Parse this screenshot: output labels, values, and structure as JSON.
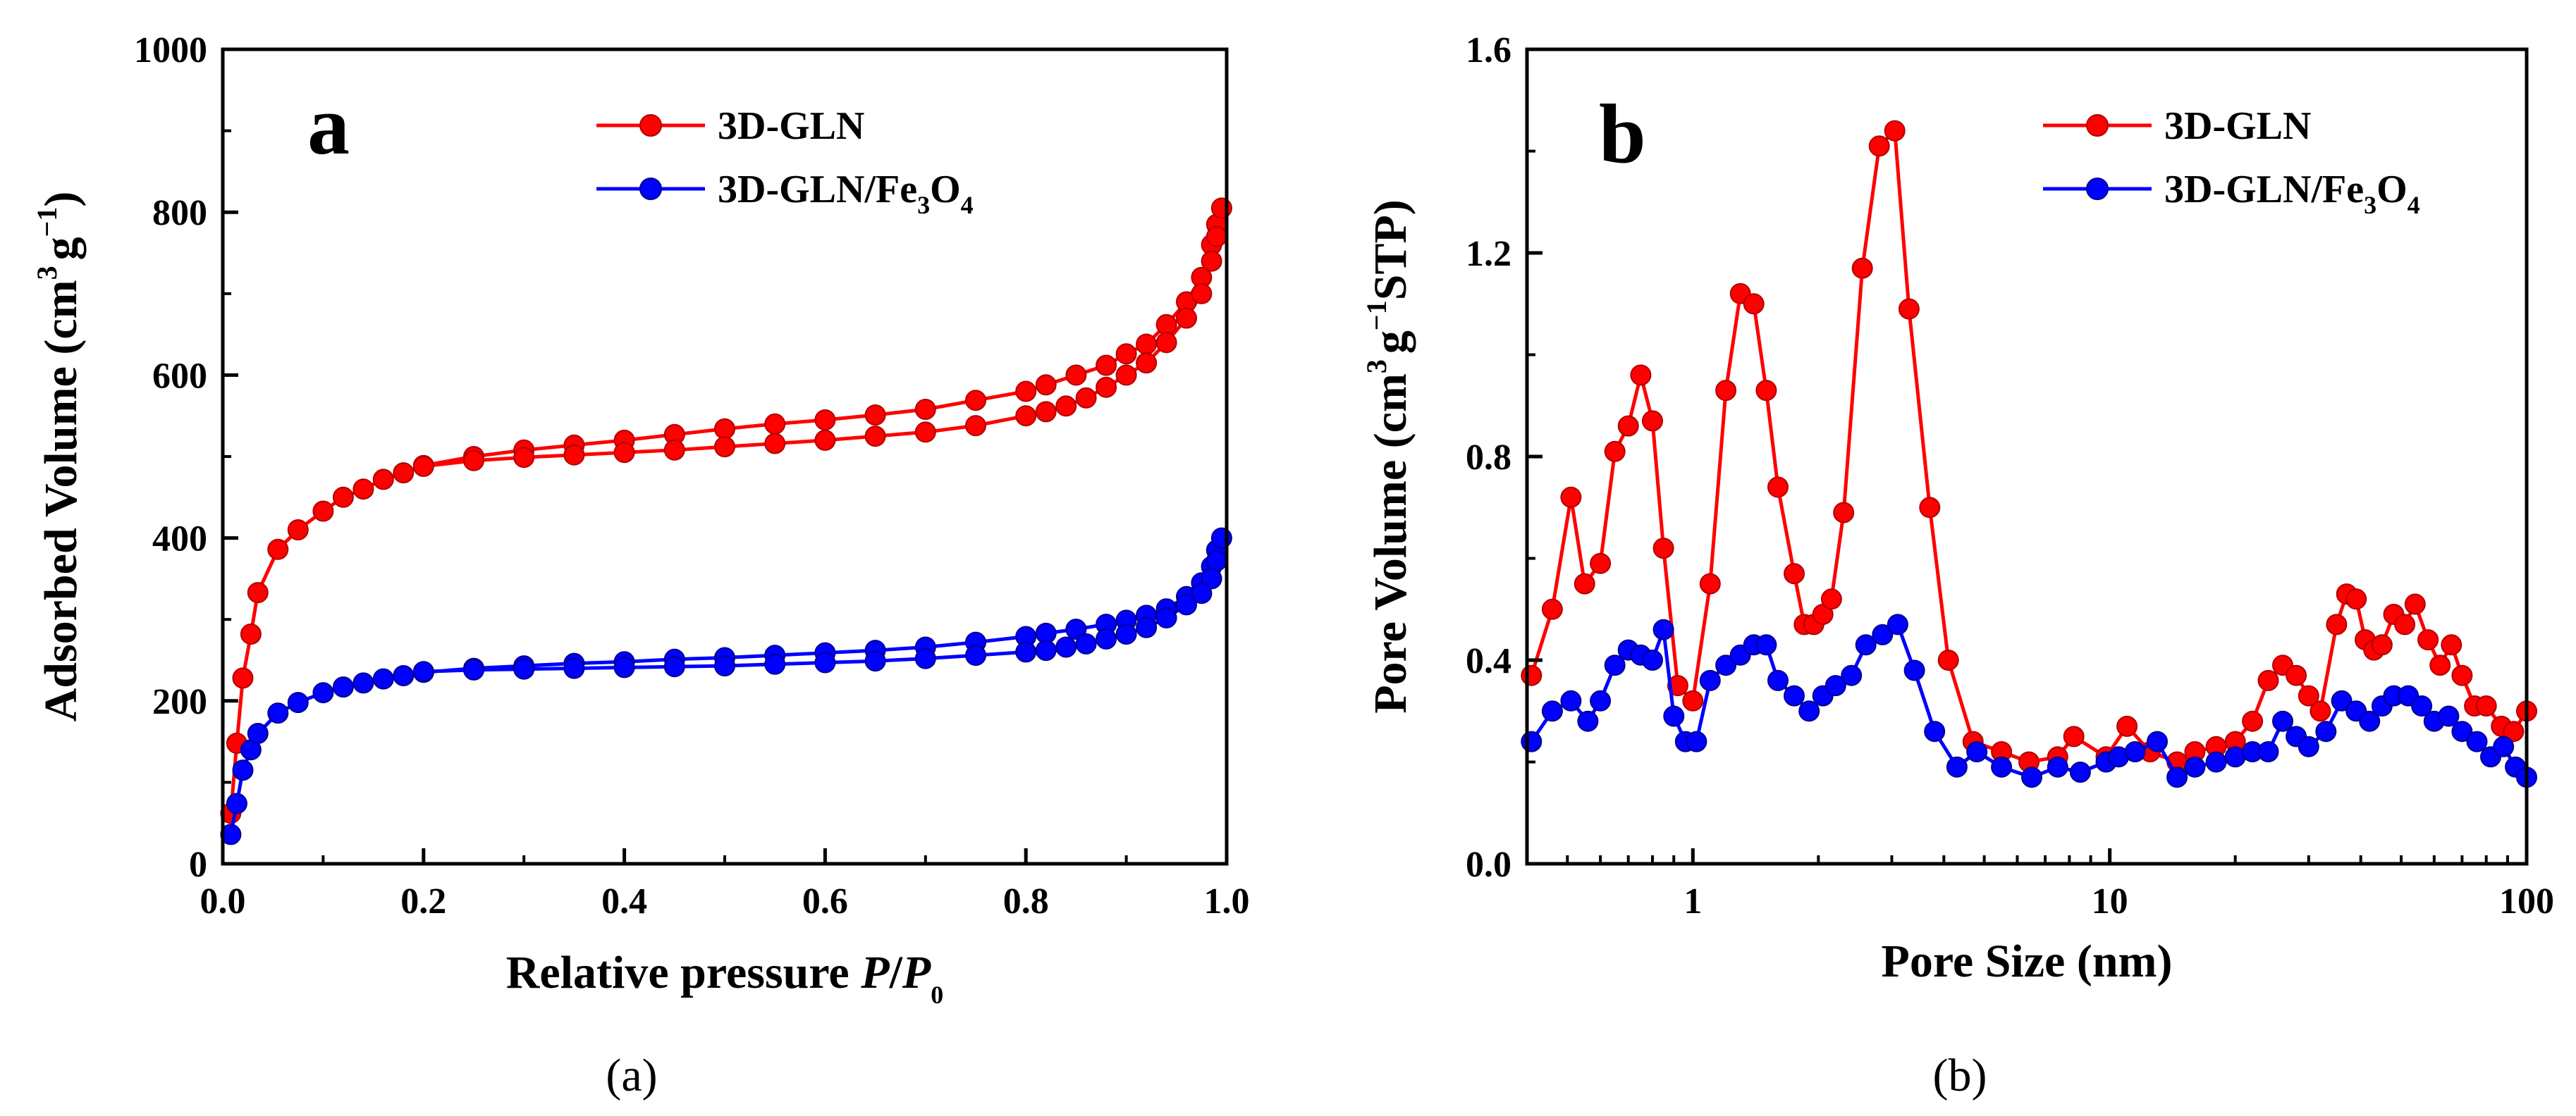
{
  "chart_data": [
    {
      "type": "line",
      "panel_letter": "a",
      "caption": "(a)",
      "xlabel": {
        "main": "Relative pressure ",
        "italic1": "P",
        "slash": "/",
        "italic2": "P",
        "sub": "0"
      },
      "ylabel": {
        "main": "Adsorbed Volume (cm",
        "sup1": "3",
        "mid": "g",
        "sup2": "−1",
        "end": ")"
      },
      "xscale": "linear",
      "xlim": [
        0.0,
        1.0
      ],
      "ylim": [
        0,
        1000
      ],
      "xticks": [
        0.0,
        0.2,
        0.4,
        0.6,
        0.8,
        1.0
      ],
      "xtick_labels": [
        "0.0",
        "0.2",
        "0.4",
        "0.6",
        "0.8",
        "1.0"
      ],
      "yticks": [
        0,
        200,
        400,
        600,
        800,
        1000
      ],
      "ytick_labels": [
        "0",
        "200",
        "400",
        "600",
        "800",
        "1000"
      ],
      "legend_position": "top-right",
      "series": [
        {
          "name": "3D-GLN",
          "label_main": "3D-GLN",
          "color": "#ff0000",
          "points": [
            [
              0.008,
              62
            ],
            [
              0.014,
              148
            ],
            [
              0.02,
              228
            ],
            [
              0.028,
              282
            ],
            [
              0.035,
              333
            ],
            [
              0.055,
              386
            ],
            [
              0.075,
              410
            ],
            [
              0.1,
              433
            ],
            [
              0.12,
              450
            ],
            [
              0.14,
              460
            ],
            [
              0.16,
              472
            ],
            [
              0.18,
              480
            ],
            [
              0.2,
              489
            ],
            [
              0.25,
              500
            ],
            [
              0.3,
              508
            ],
            [
              0.35,
              514
            ],
            [
              0.4,
              520
            ],
            [
              0.45,
              527
            ],
            [
              0.5,
              534
            ],
            [
              0.55,
              540
            ],
            [
              0.6,
              545
            ],
            [
              0.65,
              551
            ],
            [
              0.7,
              558
            ],
            [
              0.75,
              569
            ],
            [
              0.8,
              580
            ],
            [
              0.82,
              588
            ],
            [
              0.85,
              600
            ],
            [
              0.88,
              612
            ],
            [
              0.9,
              626
            ],
            [
              0.92,
              638
            ],
            [
              0.94,
              662
            ],
            [
              0.96,
              690
            ],
            [
              0.975,
              720
            ],
            [
              0.985,
              760
            ],
            [
              0.99,
              785
            ],
            [
              0.995,
              805
            ],
            [
              0.99,
              770
            ],
            [
              0.985,
              740
            ],
            [
              0.975,
              700
            ],
            [
              0.96,
              670
            ],
            [
              0.94,
              640
            ],
            [
              0.92,
              615
            ],
            [
              0.9,
              600
            ],
            [
              0.88,
              585
            ],
            [
              0.86,
              572
            ],
            [
              0.84,
              562
            ],
            [
              0.82,
              555
            ],
            [
              0.8,
              550
            ],
            [
              0.75,
              538
            ],
            [
              0.7,
              530
            ],
            [
              0.65,
              525
            ],
            [
              0.6,
              520
            ],
            [
              0.55,
              516
            ],
            [
              0.5,
              512
            ],
            [
              0.45,
              508
            ],
            [
              0.4,
              505
            ],
            [
              0.35,
              502
            ],
            [
              0.3,
              499
            ],
            [
              0.25,
              495
            ],
            [
              0.2,
              488
            ]
          ]
        },
        {
          "name": "3D-GLN/Fe3O4",
          "label_main": "3D-GLN/Fe",
          "label_sub1": "3",
          "label_mid": "O",
          "label_sub2": "4",
          "color": "#0000ff",
          "points": [
            [
              0.008,
              36
            ],
            [
              0.014,
              74
            ],
            [
              0.02,
              115
            ],
            [
              0.028,
              140
            ],
            [
              0.035,
              160
            ],
            [
              0.055,
              185
            ],
            [
              0.075,
              198
            ],
            [
              0.1,
              210
            ],
            [
              0.12,
              217
            ],
            [
              0.14,
              222
            ],
            [
              0.16,
              227
            ],
            [
              0.18,
              231
            ],
            [
              0.2,
              235
            ],
            [
              0.25,
              240
            ],
            [
              0.3,
              243
            ],
            [
              0.35,
              246
            ],
            [
              0.4,
              248
            ],
            [
              0.45,
              251
            ],
            [
              0.5,
              253
            ],
            [
              0.55,
              256
            ],
            [
              0.6,
              259
            ],
            [
              0.65,
              262
            ],
            [
              0.7,
              266
            ],
            [
              0.75,
              272
            ],
            [
              0.8,
              279
            ],
            [
              0.82,
              283
            ],
            [
              0.85,
              288
            ],
            [
              0.88,
              294
            ],
            [
              0.9,
              299
            ],
            [
              0.92,
              305
            ],
            [
              0.94,
              313
            ],
            [
              0.96,
              328
            ],
            [
              0.975,
              345
            ],
            [
              0.985,
              365
            ],
            [
              0.99,
              385
            ],
            [
              0.995,
              400
            ],
            [
              0.99,
              372
            ],
            [
              0.985,
              350
            ],
            [
              0.975,
              332
            ],
            [
              0.96,
              318
            ],
            [
              0.94,
              302
            ],
            [
              0.92,
              290
            ],
            [
              0.9,
              282
            ],
            [
              0.88,
              276
            ],
            [
              0.86,
              270
            ],
            [
              0.84,
              266
            ],
            [
              0.82,
              262
            ],
            [
              0.8,
              260
            ],
            [
              0.75,
              256
            ],
            [
              0.7,
              252
            ],
            [
              0.65,
              249
            ],
            [
              0.6,
              247
            ],
            [
              0.55,
              245
            ],
            [
              0.5,
              243
            ],
            [
              0.45,
              242
            ],
            [
              0.4,
              241
            ],
            [
              0.35,
              240
            ],
            [
              0.3,
              239
            ],
            [
              0.25,
              238
            ],
            [
              0.2,
              236
            ]
          ]
        }
      ]
    },
    {
      "type": "line",
      "panel_letter": "b",
      "caption": "(b)",
      "xlabel": {
        "main": "Pore Size (nm)"
      },
      "ylabel": {
        "main": "Pore Volume (cm",
        "sup1": "3",
        "mid": "g",
        "sup2": "−1",
        "end": "STP)"
      },
      "xscale": "log",
      "xlim": [
        0.4,
        100
      ],
      "ylim": [
        0.0,
        1.6
      ],
      "xticks": [
        1,
        10,
        100
      ],
      "xtick_labels": [
        "1",
        "10",
        "100"
      ],
      "yticks": [
        0.0,
        0.4,
        0.8,
        1.2,
        1.6
      ],
      "ytick_labels": [
        "0.0",
        "0.4",
        "0.8",
        "1.2",
        "1.6"
      ],
      "legend_position": "top-right",
      "series": [
        {
          "name": "3D-GLN",
          "label_main": "3D-GLN",
          "color": "#ff0000",
          "points": [
            [
              0.41,
              0.37
            ],
            [
              0.46,
              0.5
            ],
            [
              0.51,
              0.72
            ],
            [
              0.55,
              0.55
            ],
            [
              0.6,
              0.59
            ],
            [
              0.65,
              0.81
            ],
            [
              0.7,
              0.86
            ],
            [
              0.75,
              0.96
            ],
            [
              0.8,
              0.87
            ],
            [
              0.85,
              0.62
            ],
            [
              0.92,
              0.35
            ],
            [
              1.0,
              0.32
            ],
            [
              1.1,
              0.55
            ],
            [
              1.2,
              0.93
            ],
            [
              1.3,
              1.12
            ],
            [
              1.4,
              1.1
            ],
            [
              1.5,
              0.93
            ],
            [
              1.6,
              0.74
            ],
            [
              1.75,
              0.57
            ],
            [
              1.85,
              0.47
            ],
            [
              1.95,
              0.47
            ],
            [
              2.05,
              0.49
            ],
            [
              2.15,
              0.52
            ],
            [
              2.3,
              0.69
            ],
            [
              2.55,
              1.17
            ],
            [
              2.8,
              1.41
            ],
            [
              3.05,
              1.44
            ],
            [
              3.3,
              1.09
            ],
            [
              3.7,
              0.7
            ],
            [
              4.1,
              0.4
            ],
            [
              4.7,
              0.24
            ],
            [
              5.5,
              0.22
            ],
            [
              6.4,
              0.2
            ],
            [
              7.5,
              0.21
            ],
            [
              8.2,
              0.25
            ],
            [
              9.8,
              0.21
            ],
            [
              11,
              0.27
            ],
            [
              12.5,
              0.22
            ],
            [
              14.5,
              0.2
            ],
            [
              16,
              0.22
            ],
            [
              18,
              0.23
            ],
            [
              20,
              0.24
            ],
            [
              22,
              0.28
            ],
            [
              24,
              0.36
            ],
            [
              26,
              0.39
            ],
            [
              28,
              0.37
            ],
            [
              30,
              0.33
            ],
            [
              32,
              0.3
            ],
            [
              35,
              0.47
            ],
            [
              37,
              0.53
            ],
            [
              39,
              0.52
            ],
            [
              41,
              0.44
            ],
            [
              43,
              0.42
            ],
            [
              45,
              0.43
            ],
            [
              48,
              0.49
            ],
            [
              51,
              0.47
            ],
            [
              54,
              0.51
            ],
            [
              58,
              0.44
            ],
            [
              62,
              0.39
            ],
            [
              66,
              0.43
            ],
            [
              70,
              0.37
            ],
            [
              75,
              0.31
            ],
            [
              80,
              0.31
            ],
            [
              87,
              0.27
            ],
            [
              93,
              0.26
            ],
            [
              100,
              0.3
            ]
          ]
        },
        {
          "name": "3D-GLN/Fe3O4",
          "label_main": "3D-GLN/Fe",
          "label_sub1": "3",
          "label_mid": "O",
          "label_sub2": "4",
          "color": "#0000ff",
          "points": [
            [
              0.41,
              0.24
            ],
            [
              0.46,
              0.3
            ],
            [
              0.51,
              0.32
            ],
            [
              0.56,
              0.28
            ],
            [
              0.6,
              0.32
            ],
            [
              0.65,
              0.39
            ],
            [
              0.7,
              0.42
            ],
            [
              0.75,
              0.41
            ],
            [
              0.8,
              0.4
            ],
            [
              0.85,
              0.46
            ],
            [
              0.9,
              0.29
            ],
            [
              0.96,
              0.24
            ],
            [
              1.02,
              0.24
            ],
            [
              1.1,
              0.36
            ],
            [
              1.2,
              0.39
            ],
            [
              1.3,
              0.41
            ],
            [
              1.4,
              0.43
            ],
            [
              1.5,
              0.43
            ],
            [
              1.6,
              0.36
            ],
            [
              1.75,
              0.33
            ],
            [
              1.9,
              0.3
            ],
            [
              2.05,
              0.33
            ],
            [
              2.2,
              0.35
            ],
            [
              2.4,
              0.37
            ],
            [
              2.6,
              0.43
            ],
            [
              2.85,
              0.45
            ],
            [
              3.1,
              0.47
            ],
            [
              3.4,
              0.38
            ],
            [
              3.8,
              0.26
            ],
            [
              4.3,
              0.19
            ],
            [
              4.8,
              0.22
            ],
            [
              5.5,
              0.19
            ],
            [
              6.5,
              0.17
            ],
            [
              7.5,
              0.19
            ],
            [
              8.5,
              0.18
            ],
            [
              9.8,
              0.2
            ],
            [
              10.5,
              0.21
            ],
            [
              11.5,
              0.22
            ],
            [
              13,
              0.24
            ],
            [
              14.5,
              0.17
            ],
            [
              16,
              0.19
            ],
            [
              18,
              0.2
            ],
            [
              20,
              0.21
            ],
            [
              22,
              0.22
            ],
            [
              24,
              0.22
            ],
            [
              26,
              0.28
            ],
            [
              28,
              0.25
            ],
            [
              30,
              0.23
            ],
            [
              33,
              0.26
            ],
            [
              36,
              0.32
            ],
            [
              39,
              0.3
            ],
            [
              42,
              0.28
            ],
            [
              45,
              0.31
            ],
            [
              48,
              0.33
            ],
            [
              52,
              0.33
            ],
            [
              56,
              0.31
            ],
            [
              60,
              0.28
            ],
            [
              65,
              0.29
            ],
            [
              70,
              0.26
            ],
            [
              76,
              0.24
            ],
            [
              82,
              0.21
            ],
            [
              88,
              0.23
            ],
            [
              94,
              0.19
            ],
            [
              100,
              0.17
            ]
          ]
        }
      ]
    }
  ]
}
